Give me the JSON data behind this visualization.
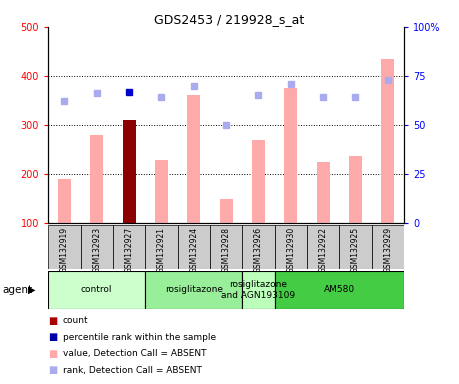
{
  "title": "GDS2453 / 219928_s_at",
  "samples": [
    "GSM132919",
    "GSM132923",
    "GSM132927",
    "GSM132921",
    "GSM132924",
    "GSM132928",
    "GSM132926",
    "GSM132930",
    "GSM132922",
    "GSM132925",
    "GSM132929"
  ],
  "bar_values": [
    190,
    280,
    310,
    228,
    360,
    148,
    268,
    375,
    225,
    237,
    435
  ],
  "bar_colors": [
    "#ffaaaa",
    "#ffaaaa",
    "#8b0000",
    "#ffaaaa",
    "#ffaaaa",
    "#ffaaaa",
    "#ffaaaa",
    "#ffaaaa",
    "#ffaaaa",
    "#ffaaaa",
    "#ffaaaa"
  ],
  "rank_values": [
    62,
    66,
    67,
    64,
    70,
    50,
    65,
    71,
    64,
    64,
    73
  ],
  "rank_colors": [
    "#aaaaee",
    "#aaaaee",
    "#0000cc",
    "#aaaaee",
    "#aaaaee",
    "#aaaaee",
    "#aaaaee",
    "#aaaaee",
    "#aaaaee",
    "#aaaaee",
    "#aaaaee"
  ],
  "ylim_left": [
    100,
    500
  ],
  "ylim_right": [
    0,
    100
  ],
  "yticks_left": [
    100,
    200,
    300,
    400,
    500
  ],
  "ytick_labels_left": [
    "100",
    "200",
    "300",
    "400",
    "500"
  ],
  "yticks_right": [
    0,
    25,
    50,
    75,
    100
  ],
  "ytick_labels_right": [
    "0",
    "25",
    "50",
    "75",
    "100%"
  ],
  "gridlines": [
    200,
    300,
    400
  ],
  "groups": [
    {
      "label": "control",
      "start": 0,
      "end": 3,
      "color": "#ccffcc"
    },
    {
      "label": "rosiglitazone",
      "start": 3,
      "end": 6,
      "color": "#99ee99"
    },
    {
      "label": "rosiglitazone\nand AGN193109",
      "start": 6,
      "end": 7,
      "color": "#bbffbb"
    },
    {
      "label": "AM580",
      "start": 7,
      "end": 11,
      "color": "#44cc44"
    }
  ],
  "legend_items": [
    {
      "color": "#aa0000",
      "label": "count",
      "marker": "s"
    },
    {
      "color": "#0000aa",
      "label": "percentile rank within the sample",
      "marker": "s"
    },
    {
      "color": "#ffaaaa",
      "label": "value, Detection Call = ABSENT",
      "marker": "s"
    },
    {
      "color": "#aaaaee",
      "label": "rank, Detection Call = ABSENT",
      "marker": "s"
    }
  ],
  "bg_color": "#ffffff",
  "plot_bg": "#ffffff",
  "tick_box_color": "#cccccc",
  "left_tick_color": "red",
  "right_tick_color": "blue"
}
